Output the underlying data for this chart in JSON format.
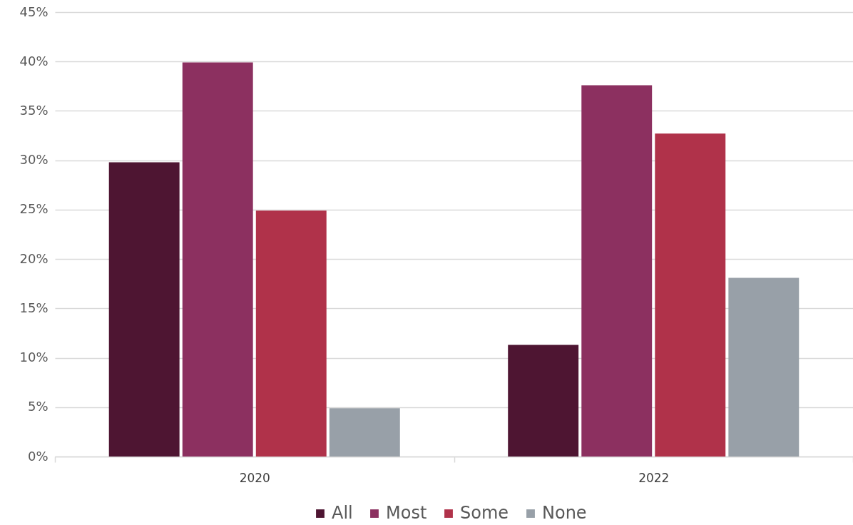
{
  "chart_data": {
    "type": "bar",
    "categories": [
      "2020",
      "2022"
    ],
    "series": [
      {
        "name": "All",
        "color": "#4e1532",
        "values": [
          29.8,
          11.3
        ]
      },
      {
        "name": "Most",
        "color": "#8c3060",
        "values": [
          39.9,
          37.6
        ]
      },
      {
        "name": "Some",
        "color": "#b0324a",
        "values": [
          24.9,
          32.7
        ]
      },
      {
        "name": "None",
        "color": "#98a0a8",
        "values": [
          4.9,
          18.1
        ]
      }
    ],
    "ylim": [
      0,
      45
    ],
    "yticks": [
      {
        "value": 0,
        "label": "0%"
      },
      {
        "value": 5,
        "label": "5%"
      },
      {
        "value": 10,
        "label": "10%"
      },
      {
        "value": 15,
        "label": "15%"
      },
      {
        "value": 20,
        "label": "20%"
      },
      {
        "value": 25,
        "label": "25%"
      },
      {
        "value": 30,
        "label": "30%"
      },
      {
        "value": 35,
        "label": "35%"
      },
      {
        "value": 40,
        "label": "40%"
      },
      {
        "value": 45,
        "label": "45%"
      }
    ],
    "grid": "y",
    "legend": "bottom"
  }
}
